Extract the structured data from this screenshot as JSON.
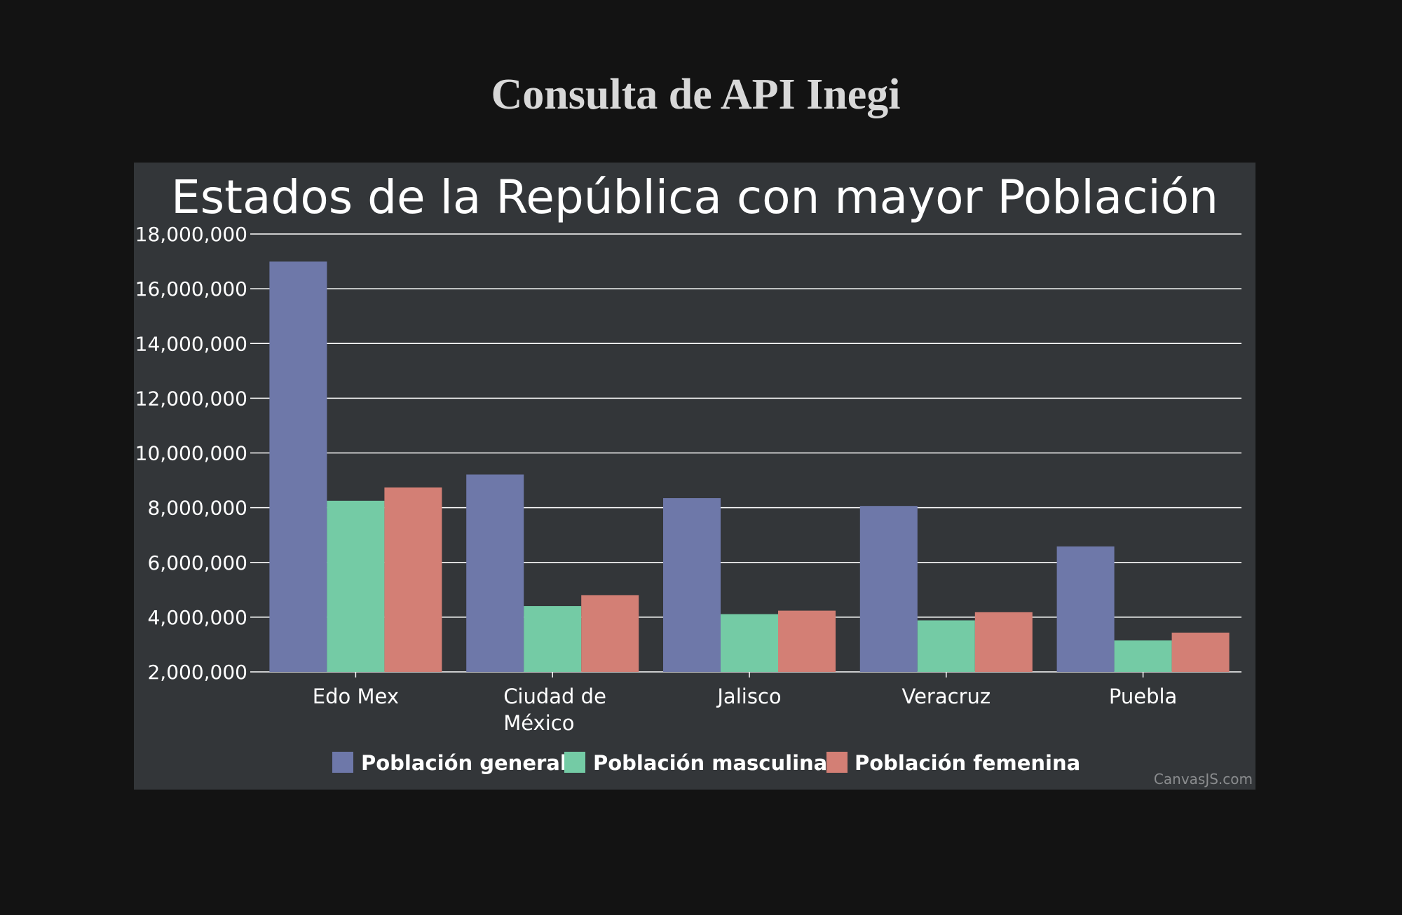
{
  "page": {
    "title": "Consulta de API Inegi"
  },
  "chart_data": {
    "type": "bar",
    "title": "Estados de la República con mayor Población",
    "xlabel": "",
    "ylabel": "",
    "categories": [
      [
        "Edo Mex"
      ],
      [
        "Ciudad de",
        "México"
      ],
      [
        "Jalisco"
      ],
      [
        "Veracruz"
      ],
      [
        "Puebla"
      ]
    ],
    "series": [
      {
        "name": "Población general",
        "color": "#6e78a9",
        "values": [
          16992418,
          9209944,
          8348151,
          8062579,
          6583278
        ]
      },
      {
        "name": "Población masculina",
        "color": "#74cba5",
        "values": [
          8251295,
          4404927,
          4110495,
          3882320,
          3148174
        ]
      },
      {
        "name": "Población femenina",
        "color": "#d37f75",
        "values": [
          8741123,
          4805017,
          4237656,
          4180259,
          3435104
        ]
      }
    ],
    "ylim": [
      2000000,
      18000000
    ],
    "yticks": [
      {
        "value": 2000000,
        "label": "2,000,000"
      },
      {
        "value": 4000000,
        "label": "4,000,000"
      },
      {
        "value": 6000000,
        "label": "6,000,000"
      },
      {
        "value": 8000000,
        "label": "8,000,000"
      },
      {
        "value": 10000000,
        "label": "10,000,000"
      },
      {
        "value": 12000000,
        "label": "12,000,000"
      },
      {
        "value": 14000000,
        "label": "14,000,000"
      },
      {
        "value": 16000000,
        "label": "16,000,000"
      },
      {
        "value": 18000000,
        "label": "18,000,000"
      }
    ],
    "grid": true,
    "legend_position": "bottom",
    "credit": "CanvasJS.com"
  }
}
